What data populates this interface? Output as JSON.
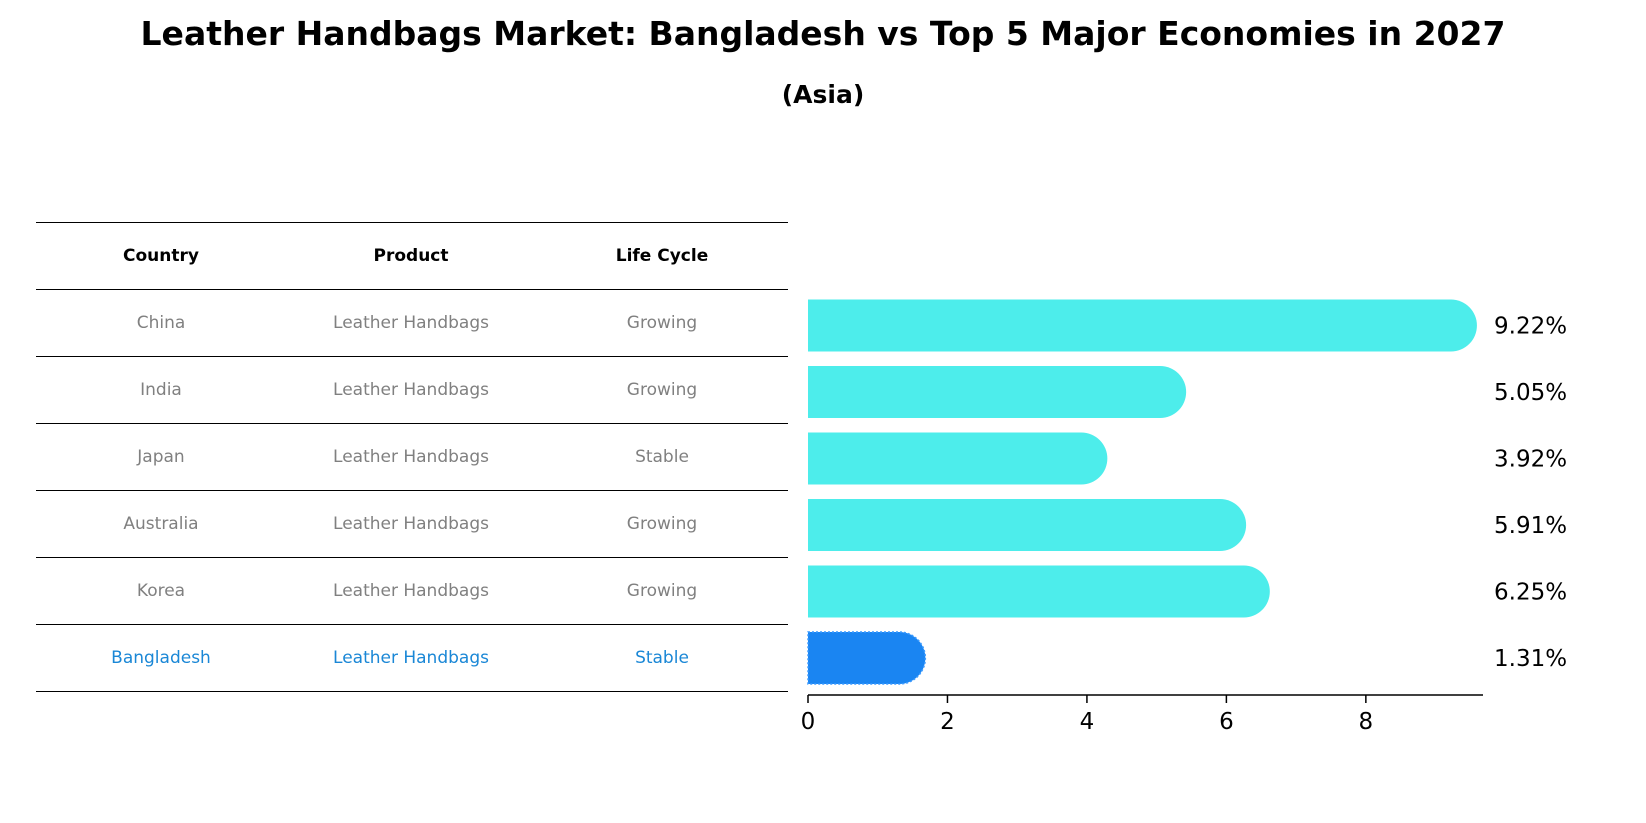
{
  "chart_data": {
    "type": "bar",
    "orientation": "horizontal",
    "title": "Leather Handbags Market: Bangladesh vs Top 5 Major Economies in 2027",
    "subtitle": "(Asia)",
    "categories": [
      "China",
      "India",
      "Japan",
      "Australia",
      "Korea",
      "Bangladesh"
    ],
    "values": [
      9.22,
      5.05,
      3.92,
      5.91,
      6.25,
      1.31
    ],
    "value_labels": [
      "9.22%",
      "5.05%",
      "3.92%",
      "5.91%",
      "6.25%",
      "1.31%"
    ],
    "xlim": [
      0,
      9.68
    ],
    "xticks": [
      0,
      2,
      4,
      6,
      8
    ],
    "xtick_labels": [
      "0",
      "2",
      "4",
      "6",
      "8"
    ],
    "highlight_category": "Bangladesh",
    "colors": {
      "default_bar": "#4dedeb",
      "highlight_bar": "#1a85f2",
      "highlight_text": "#1a87d6",
      "table_text": "#808080"
    }
  },
  "table": {
    "headers": [
      "Country",
      "Product",
      "Life Cycle"
    ],
    "rows": [
      [
        "China",
        "Leather Handbags",
        "Growing"
      ],
      [
        "India",
        "Leather Handbags",
        "Growing"
      ],
      [
        "Japan",
        "Leather Handbags",
        "Stable"
      ],
      [
        "Australia",
        "Leather Handbags",
        "Growing"
      ],
      [
        "Korea",
        "Leather Handbags",
        "Growing"
      ],
      [
        "Bangladesh",
        "Leather Handbags",
        "Stable"
      ]
    ]
  }
}
